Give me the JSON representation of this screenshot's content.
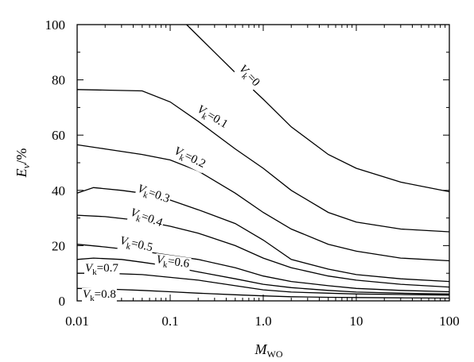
{
  "chart_data": {
    "type": "line",
    "xscale": "log",
    "xlim": [
      0.01,
      100
    ],
    "ylim": [
      0,
      100
    ],
    "xlabel": {
      "main": "M",
      "sub": "WO"
    },
    "ylabel": {
      "main": "E",
      "sub": "v",
      "unit": "/%"
    },
    "x_ticks": [
      {
        "value": 0.01,
        "label": "0.01"
      },
      {
        "value": 0.1,
        "label": "0.1"
      },
      {
        "value": 1,
        "label": "1.0"
      },
      {
        "value": 10,
        "label": "10"
      },
      {
        "value": 100,
        "label": "100"
      }
    ],
    "y_ticks": [
      {
        "value": 0,
        "label": "0"
      },
      {
        "value": 20,
        "label": "20"
      },
      {
        "value": 40,
        "label": "40"
      },
      {
        "value": 60,
        "label": "60"
      },
      {
        "value": 80,
        "label": "80"
      },
      {
        "value": 100,
        "label": "100"
      }
    ],
    "grid": false,
    "series": [
      {
        "name": "Vk=0",
        "label": {
          "main": "V",
          "sub": "k",
          "rest": "=0"
        },
        "x": [
          0.15,
          0.3,
          0.6,
          1.0,
          2.0,
          5.0,
          10,
          30,
          100
        ],
        "y": [
          100,
          90,
          80,
          73,
          63,
          53,
          48,
          43,
          39.5
        ]
      },
      {
        "name": "Vk=0.1",
        "label": {
          "main": "V",
          "sub": "k",
          "rest": "=0.1"
        },
        "x": [
          0.01,
          0.02,
          0.05,
          0.1,
          0.2,
          0.5,
          1.0,
          2.0,
          5.0,
          10,
          30,
          100
        ],
        "y": [
          76.5,
          76.3,
          76,
          72,
          65,
          55,
          48,
          40,
          32,
          28.5,
          26,
          25
        ]
      },
      {
        "name": "Vk=0.2",
        "label": {
          "main": "V",
          "sub": "k",
          "rest": "=0.2"
        },
        "x": [
          0.01,
          0.02,
          0.05,
          0.1,
          0.2,
          0.5,
          1.0,
          2.0,
          5.0,
          10,
          30,
          100
        ],
        "y": [
          56.5,
          55,
          53,
          51,
          47,
          39,
          32,
          26,
          20.5,
          18,
          15.5,
          14.5
        ]
      },
      {
        "name": "Vk=0.3",
        "label": {
          "main": "V",
          "sub": "k",
          "rest": "=0.3"
        },
        "x": [
          0.01,
          0.015,
          0.03,
          0.05,
          0.1,
          0.2,
          0.5,
          1.0,
          2.0,
          5.0,
          10,
          30,
          100
        ],
        "y": [
          39,
          41,
          40,
          39,
          36.5,
          33,
          28,
          22,
          15,
          11.5,
          9.5,
          8,
          7
        ]
      },
      {
        "name": "Vk=0.4",
        "label": {
          "main": "V",
          "sub": "k",
          "rest": "=0.4"
        },
        "x": [
          0.01,
          0.02,
          0.05,
          0.1,
          0.2,
          0.5,
          1.0,
          2.0,
          5.0,
          10,
          30,
          100
        ],
        "y": [
          31,
          30.5,
          29,
          27,
          24.5,
          20,
          15.5,
          12,
          9,
          7.5,
          6,
          5
        ]
      },
      {
        "name": "Vk=0.5",
        "label": {
          "main": "V",
          "sub": "k",
          "rest": "=0.5"
        },
        "x": [
          0.01,
          0.02,
          0.05,
          0.1,
          0.2,
          0.5,
          1.0,
          2.0,
          5.0,
          10,
          30,
          100
        ],
        "y": [
          20.5,
          19.5,
          18,
          16.5,
          15,
          12,
          9,
          7,
          5.5,
          4.5,
          3.8,
          3.3
        ]
      },
      {
        "name": "Vk=0.6",
        "label": {
          "main": "V",
          "sub": "k",
          "rest": "=0.6"
        },
        "x": [
          0.01,
          0.015,
          0.03,
          0.05,
          0.1,
          0.2,
          0.5,
          1.0,
          2.0,
          5.0,
          10,
          30,
          100
        ],
        "y": [
          15,
          15.5,
          15,
          14,
          12.5,
          10.5,
          8,
          6,
          4.8,
          3.8,
          3.2,
          2.8,
          2.5
        ]
      },
      {
        "name": "Vk=0.7",
        "label": {
          "main": "V",
          "sub": "k",
          "rest": "=0.7"
        },
        "x": [
          0.01,
          0.02,
          0.05,
          0.1,
          0.2,
          0.5,
          1.0,
          2.0,
          5.0,
          10,
          30,
          100
        ],
        "y": [
          10,
          10,
          9.5,
          8.5,
          7.5,
          5.5,
          4,
          3.2,
          2.8,
          2.5,
          2.3,
          2.1
        ]
      },
      {
        "name": "Vk=0.8",
        "label": {
          "main": "V",
          "sub": "k",
          "rest": "=0.8"
        },
        "x": [
          0.01,
          0.02,
          0.05,
          0.1,
          0.2,
          0.5,
          1.0,
          2.0,
          5.0,
          10,
          30,
          100
        ],
        "y": [
          4.5,
          4.3,
          3.8,
          3.3,
          2.8,
          2.2,
          1.8,
          1.5,
          1.3,
          1.2,
          1.1,
          1.0
        ]
      }
    ]
  }
}
